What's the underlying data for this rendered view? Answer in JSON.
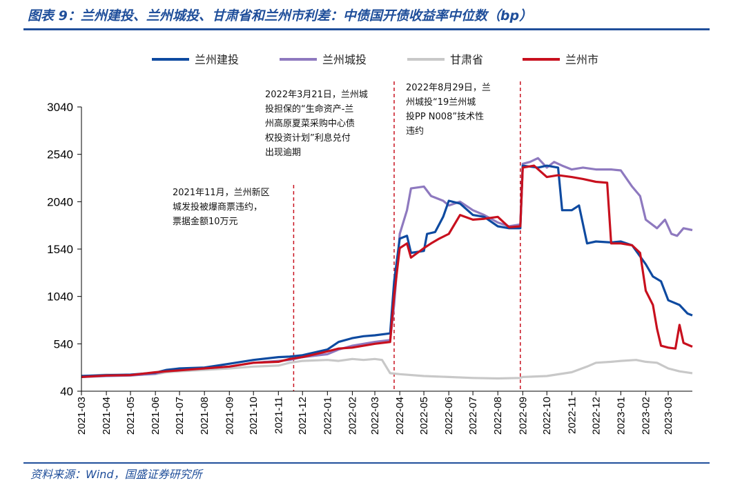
{
  "header": {
    "title": "图表 9：兰州建投、兰州城投、甘肃省和兰州市利差：中债国开债收益率中位数（bp）",
    "source": "资料来源：Wind，国盛证券研究所"
  },
  "colors": {
    "lanzhou_jiantou": "#0e4aa0",
    "lanzhou_chengtou": "#8e79bf",
    "gansu": "#c8c8c8",
    "lanzhou_city": "#c8101e",
    "annotation_line": "#c8101e",
    "brand": "#1f4e9a"
  },
  "chart_data": {
    "type": "line",
    "title": "",
    "xlabel": "",
    "ylabel": "",
    "ylim": [
      40,
      3040
    ],
    "yticks": [
      40,
      540,
      1040,
      1540,
      2040,
      2540,
      3040
    ],
    "xlim": [
      "2021-03-01",
      "2023-03-31"
    ],
    "x_tick_labels": [
      "2021-03",
      "2021-04",
      "2021-05",
      "2021-06",
      "2021-07",
      "2021-08",
      "2021-09",
      "2021-10",
      "2021-11",
      "2021-12",
      "2022-01",
      "2022-02",
      "2022-03",
      "2022-04",
      "2022-05",
      "2022-06",
      "2022-07",
      "2022-08",
      "2022-09",
      "2022-10",
      "2022-11",
      "2022-12",
      "2023-01",
      "2023-02",
      "2023-03"
    ],
    "legend_position": "top",
    "grid": false,
    "series": [
      {
        "name": "兰州建投",
        "color": "#0e4aa0",
        "points": [
          [
            "2021-03-01",
            200
          ],
          [
            "2021-04-01",
            210
          ],
          [
            "2021-05-01",
            215
          ],
          [
            "2021-06-01",
            235
          ],
          [
            "2021-06-15",
            265
          ],
          [
            "2021-07-01",
            280
          ],
          [
            "2021-08-01",
            290
          ],
          [
            "2021-09-01",
            330
          ],
          [
            "2021-10-01",
            370
          ],
          [
            "2021-11-01",
            400
          ],
          [
            "2021-11-15",
            405
          ],
          [
            "2021-12-01",
            420
          ],
          [
            "2022-01-01",
            480
          ],
          [
            "2022-01-15",
            560
          ],
          [
            "2022-02-01",
            600
          ],
          [
            "2022-02-15",
            620
          ],
          [
            "2022-03-01",
            630
          ],
          [
            "2022-03-20",
            650
          ],
          [
            "2022-03-25",
            1200
          ],
          [
            "2022-04-01",
            1650
          ],
          [
            "2022-04-10",
            1680
          ],
          [
            "2022-04-15",
            1500
          ],
          [
            "2022-05-01",
            1520
          ],
          [
            "2022-05-05",
            1700
          ],
          [
            "2022-05-15",
            1720
          ],
          [
            "2022-05-25",
            1880
          ],
          [
            "2022-06-01",
            2050
          ],
          [
            "2022-06-15",
            2020
          ],
          [
            "2022-07-01",
            1900
          ],
          [
            "2022-07-15",
            1880
          ],
          [
            "2022-08-01",
            1780
          ],
          [
            "2022-08-15",
            1760
          ],
          [
            "2022-08-29",
            1760
          ],
          [
            "2022-09-01",
            2420
          ],
          [
            "2022-09-20",
            2400
          ],
          [
            "2022-10-01",
            2420
          ],
          [
            "2022-10-15",
            2400
          ],
          [
            "2022-10-20",
            1950
          ],
          [
            "2022-11-01",
            1950
          ],
          [
            "2022-11-10",
            2000
          ],
          [
            "2022-11-20",
            1600
          ],
          [
            "2022-12-01",
            1620
          ],
          [
            "2022-12-20",
            1610
          ],
          [
            "2023-01-01",
            1620
          ],
          [
            "2023-01-15",
            1580
          ],
          [
            "2023-02-01",
            1380
          ],
          [
            "2023-02-10",
            1250
          ],
          [
            "2023-02-20",
            1200
          ],
          [
            "2023-03-01",
            1000
          ],
          [
            "2023-03-15",
            950
          ],
          [
            "2023-03-25",
            860
          ],
          [
            "2023-03-31",
            840
          ]
        ]
      },
      {
        "name": "兰州城投",
        "color": "#8e79bf",
        "points": [
          [
            "2021-03-01",
            190
          ],
          [
            "2021-04-01",
            200
          ],
          [
            "2021-05-01",
            205
          ],
          [
            "2021-06-01",
            225
          ],
          [
            "2021-06-15",
            255
          ],
          [
            "2021-07-01",
            270
          ],
          [
            "2021-08-01",
            280
          ],
          [
            "2021-09-01",
            300
          ],
          [
            "2021-10-01",
            340
          ],
          [
            "2021-11-01",
            360
          ],
          [
            "2021-11-15",
            370
          ],
          [
            "2021-12-01",
            400
          ],
          [
            "2022-01-01",
            430
          ],
          [
            "2022-01-15",
            480
          ],
          [
            "2022-02-01",
            520
          ],
          [
            "2022-02-15",
            540
          ],
          [
            "2022-03-01",
            560
          ],
          [
            "2022-03-20",
            580
          ],
          [
            "2022-03-25",
            950
          ],
          [
            "2022-04-01",
            1700
          ],
          [
            "2022-04-10",
            1950
          ],
          [
            "2022-04-15",
            2180
          ],
          [
            "2022-05-01",
            2200
          ],
          [
            "2022-05-10",
            2100
          ],
          [
            "2022-05-25",
            2050
          ],
          [
            "2022-06-01",
            2000
          ],
          [
            "2022-06-15",
            2040
          ],
          [
            "2022-07-01",
            1950
          ],
          [
            "2022-07-15",
            1900
          ],
          [
            "2022-08-01",
            1820
          ],
          [
            "2022-08-15",
            1780
          ],
          [
            "2022-08-29",
            1800
          ],
          [
            "2022-09-01",
            2440
          ],
          [
            "2022-09-10",
            2460
          ],
          [
            "2022-09-20",
            2500
          ],
          [
            "2022-10-01",
            2400
          ],
          [
            "2022-10-10",
            2460
          ],
          [
            "2022-10-20",
            2420
          ],
          [
            "2022-11-01",
            2380
          ],
          [
            "2022-11-15",
            2400
          ],
          [
            "2022-12-01",
            2380
          ],
          [
            "2022-12-20",
            2380
          ],
          [
            "2023-01-01",
            2370
          ],
          [
            "2023-01-15",
            2200
          ],
          [
            "2023-01-25",
            2100
          ],
          [
            "2023-02-01",
            1850
          ],
          [
            "2023-02-15",
            1760
          ],
          [
            "2023-02-25",
            1850
          ],
          [
            "2023-03-05",
            1700
          ],
          [
            "2023-03-12",
            1680
          ],
          [
            "2023-03-20",
            1760
          ],
          [
            "2023-03-31",
            1740
          ]
        ]
      },
      {
        "name": "甘肃省",
        "color": "#c8c8c8",
        "points": [
          [
            "2021-03-01",
            200
          ],
          [
            "2021-04-01",
            215
          ],
          [
            "2021-05-01",
            210
          ],
          [
            "2021-06-01",
            220
          ],
          [
            "2021-06-15",
            240
          ],
          [
            "2021-07-01",
            250
          ],
          [
            "2021-08-01",
            265
          ],
          [
            "2021-09-01",
            280
          ],
          [
            "2021-10-01",
            300
          ],
          [
            "2021-11-01",
            310
          ],
          [
            "2021-11-15",
            340
          ],
          [
            "2021-12-01",
            360
          ],
          [
            "2022-01-01",
            370
          ],
          [
            "2022-01-15",
            360
          ],
          [
            "2022-02-01",
            380
          ],
          [
            "2022-02-15",
            370
          ],
          [
            "2022-03-01",
            380
          ],
          [
            "2022-03-10",
            370
          ],
          [
            "2022-03-20",
            230
          ],
          [
            "2022-04-01",
            220
          ],
          [
            "2022-05-01",
            200
          ],
          [
            "2022-06-01",
            190
          ],
          [
            "2022-07-01",
            180
          ],
          [
            "2022-08-01",
            175
          ],
          [
            "2022-08-29",
            180
          ],
          [
            "2022-09-01",
            190
          ],
          [
            "2022-10-01",
            200
          ],
          [
            "2022-11-01",
            240
          ],
          [
            "2022-11-20",
            300
          ],
          [
            "2022-12-01",
            340
          ],
          [
            "2022-12-20",
            350
          ],
          [
            "2023-01-01",
            360
          ],
          [
            "2023-01-20",
            370
          ],
          [
            "2023-02-01",
            350
          ],
          [
            "2023-02-15",
            340
          ],
          [
            "2023-03-01",
            280
          ],
          [
            "2023-03-15",
            250
          ],
          [
            "2023-03-31",
            230
          ]
        ]
      },
      {
        "name": "兰州市",
        "color": "#c8101e",
        "points": [
          [
            "2021-03-01",
            190
          ],
          [
            "2021-04-01",
            205
          ],
          [
            "2021-05-01",
            210
          ],
          [
            "2021-06-01",
            240
          ],
          [
            "2021-06-15",
            250
          ],
          [
            "2021-07-01",
            260
          ],
          [
            "2021-08-01",
            280
          ],
          [
            "2021-09-01",
            300
          ],
          [
            "2021-10-01",
            340
          ],
          [
            "2021-11-01",
            350
          ],
          [
            "2021-11-15",
            380
          ],
          [
            "2021-12-01",
            400
          ],
          [
            "2022-01-01",
            460
          ],
          [
            "2022-01-15",
            490
          ],
          [
            "2022-02-01",
            500
          ],
          [
            "2022-02-15",
            520
          ],
          [
            "2022-03-01",
            540
          ],
          [
            "2022-03-20",
            560
          ],
          [
            "2022-03-25",
            1050
          ],
          [
            "2022-04-01",
            1550
          ],
          [
            "2022-04-10",
            1600
          ],
          [
            "2022-04-15",
            1450
          ],
          [
            "2022-05-01",
            1550
          ],
          [
            "2022-05-10",
            1600
          ],
          [
            "2022-05-20",
            1650
          ],
          [
            "2022-06-01",
            1700
          ],
          [
            "2022-06-15",
            1900
          ],
          [
            "2022-07-01",
            1850
          ],
          [
            "2022-07-15",
            1860
          ],
          [
            "2022-08-01",
            1880
          ],
          [
            "2022-08-15",
            1770
          ],
          [
            "2022-08-29",
            1780
          ],
          [
            "2022-09-01",
            2400
          ],
          [
            "2022-09-15",
            2420
          ],
          [
            "2022-10-01",
            2300
          ],
          [
            "2022-10-15",
            2320
          ],
          [
            "2022-11-01",
            2300
          ],
          [
            "2022-11-15",
            2280
          ],
          [
            "2022-12-01",
            2250
          ],
          [
            "2022-12-15",
            2240
          ],
          [
            "2022-12-20",
            1600
          ],
          [
            "2023-01-01",
            1600
          ],
          [
            "2023-01-15",
            1580
          ],
          [
            "2023-01-25",
            1500
          ],
          [
            "2023-02-01",
            1100
          ],
          [
            "2023-02-10",
            950
          ],
          [
            "2023-02-15",
            700
          ],
          [
            "2023-02-20",
            520
          ],
          [
            "2023-03-01",
            500
          ],
          [
            "2023-03-10",
            490
          ],
          [
            "2023-03-15",
            740
          ],
          [
            "2023-03-20",
            550
          ],
          [
            "2023-03-31",
            510
          ]
        ]
      }
    ],
    "annotations": [
      {
        "date": "2021-11-20",
        "lines": [
          "2021年11月，兰州新区",
          "城发投被爆商票违约，",
          "票据金额10万元"
        ]
      },
      {
        "date": "2022-03-25",
        "lines": [
          "2022年3月21日，兰州城",
          "投担保的“生命资产-兰",
          "州高原夏菜采购中心债",
          "权投资计划”利息兑付",
          "出现逾期"
        ]
      },
      {
        "date": "2022-08-29",
        "lines": [
          "2022年8月29日，兰",
          "州城投“19兰州城",
          "投PP N008”技术性",
          "违约"
        ]
      }
    ]
  }
}
